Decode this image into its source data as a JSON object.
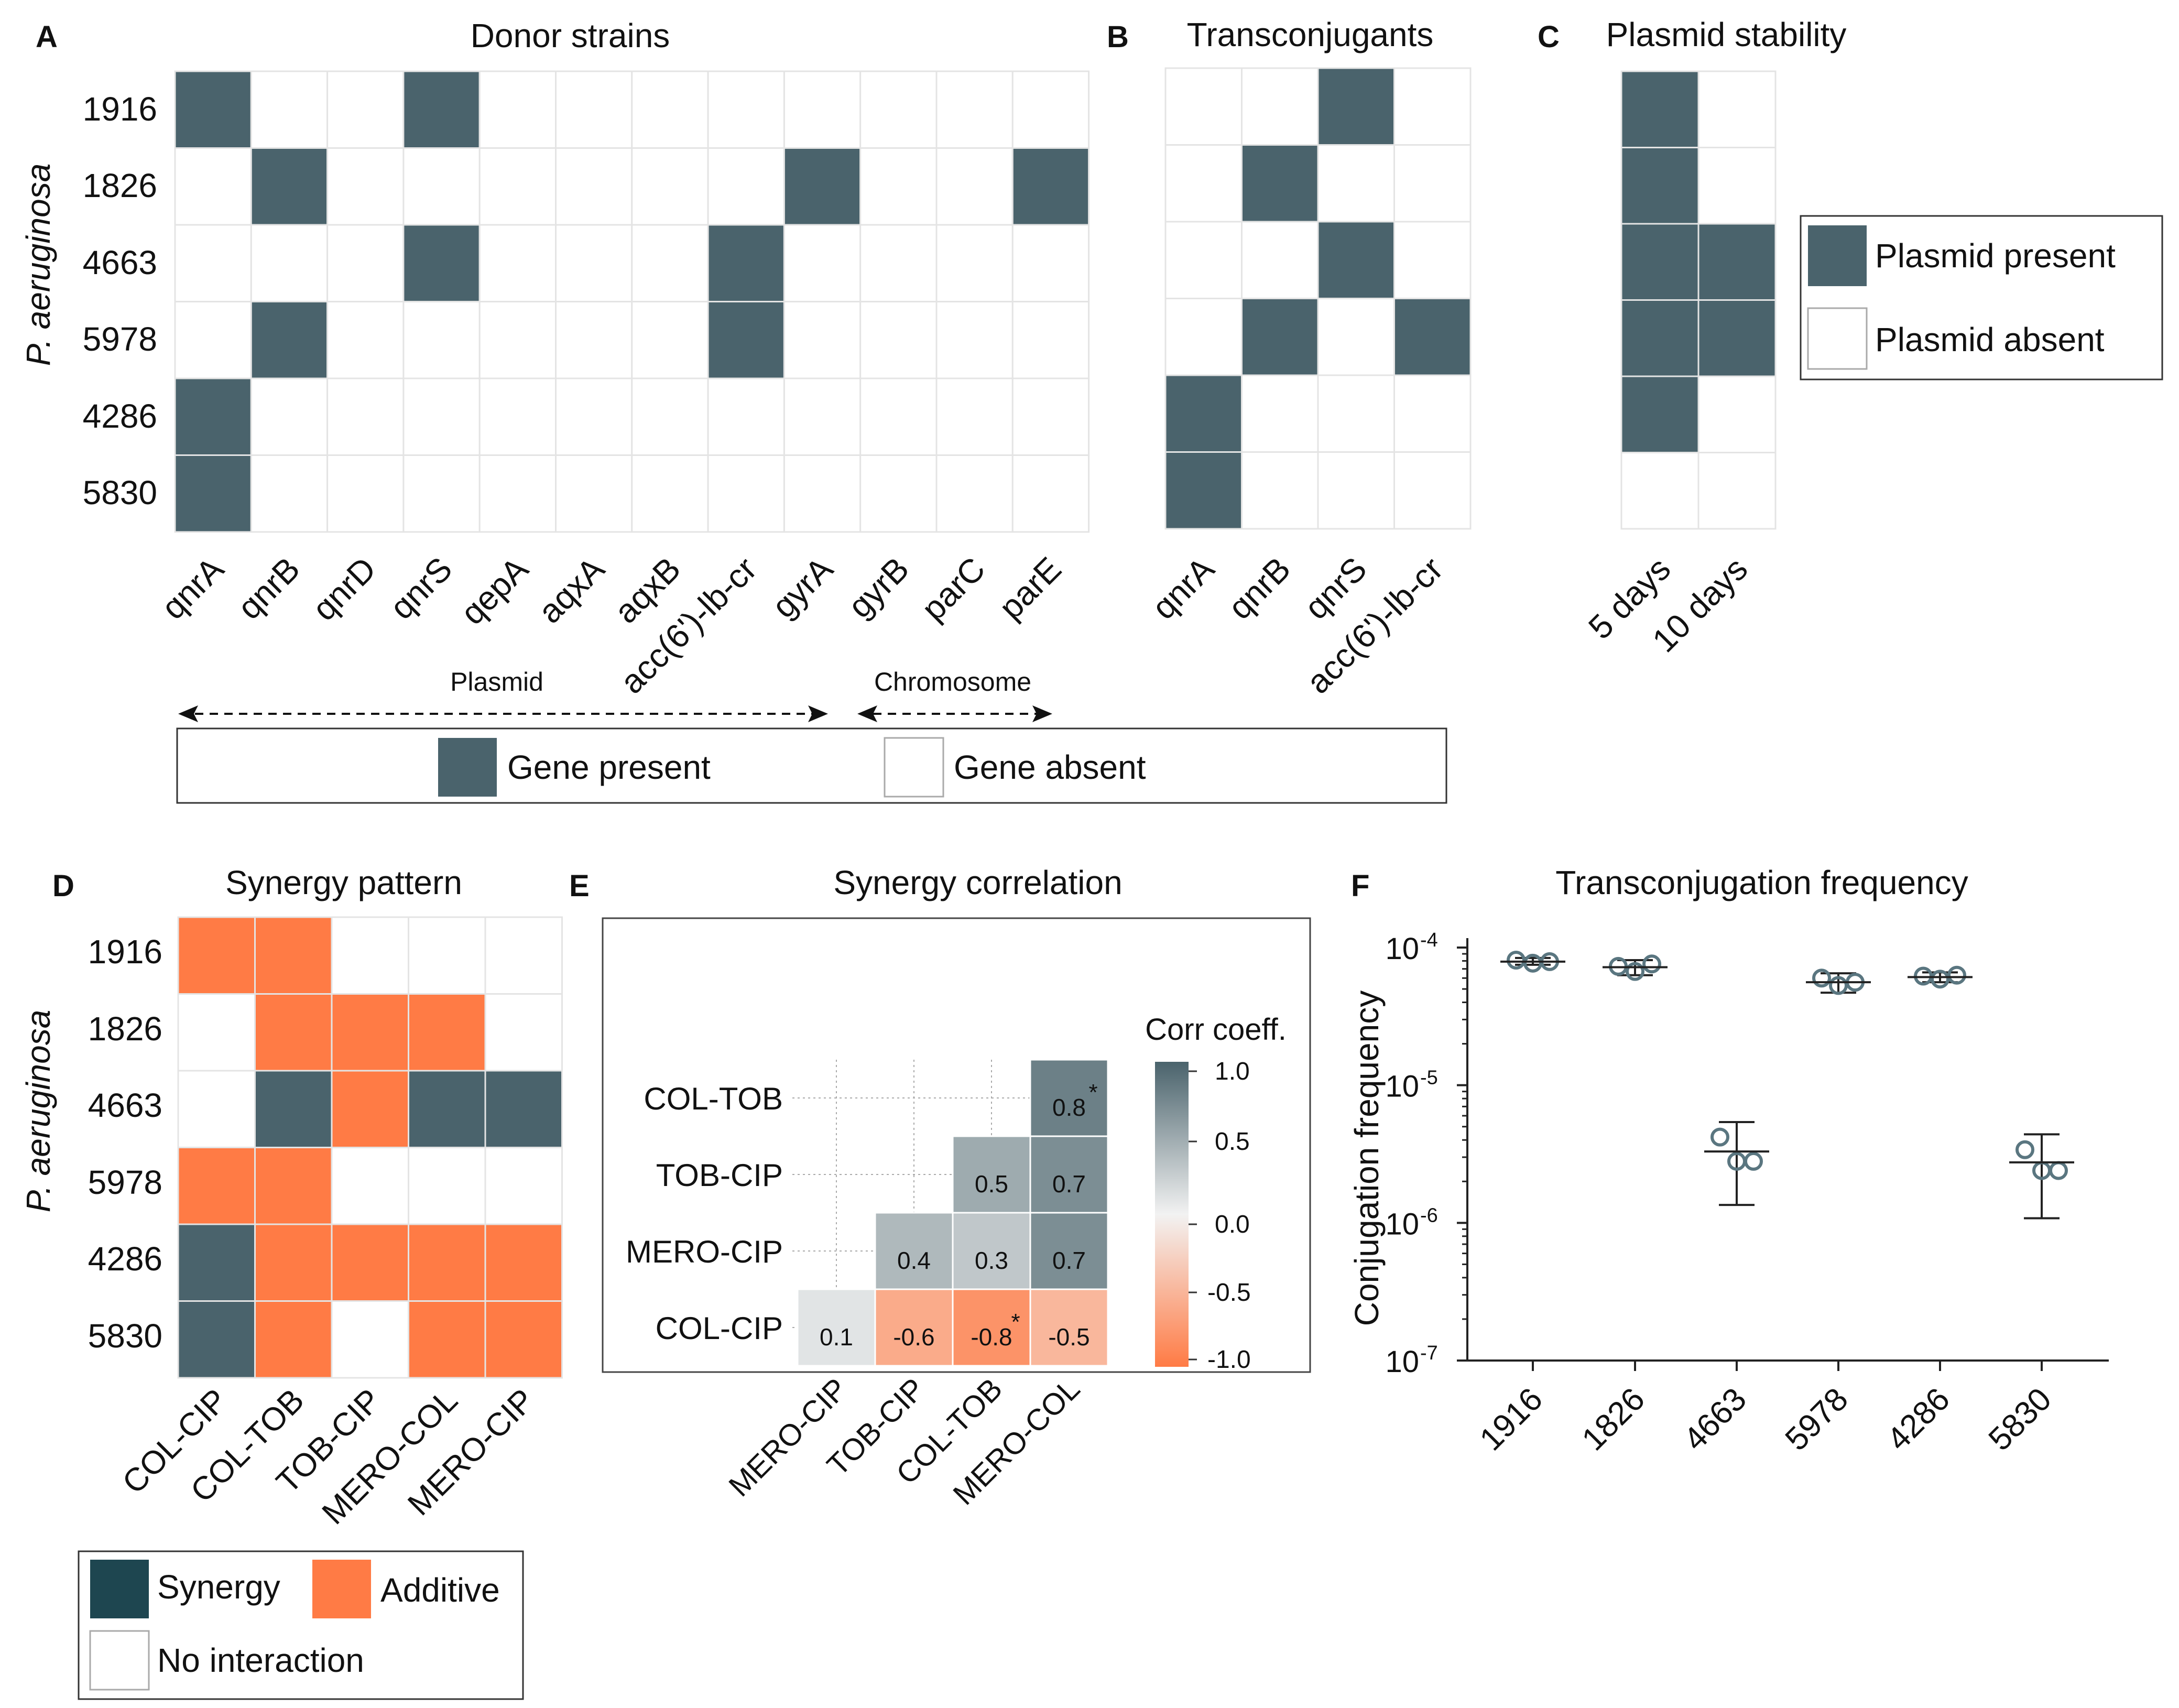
{
  "colors": {
    "present": "#4a636c",
    "absent": "#ffffff",
    "synergy": "#4a636c",
    "additive": "#ff7b45",
    "synergy_legend": "#1e4650",
    "corr_high": "#4a636c",
    "corr_mid": "#f2f2f2",
    "corr_low": "#ff7b45",
    "marker": "#5a7680"
  },
  "strains": [
    "1916",
    "1826",
    "4663",
    "5978",
    "4286",
    "5830"
  ],
  "y_axis_label": "P. aeruginosa",
  "chart_data": [
    {
      "panel": "A",
      "type": "heatmap",
      "title": "Donor strains",
      "rows": [
        "1916",
        "1826",
        "4663",
        "5978",
        "4286",
        "5830"
      ],
      "columns": [
        "qnrA",
        "qnrB",
        "qnrD",
        "qnrS",
        "qepA",
        "aqxA",
        "aqxB",
        "acc(6')-lb-cr",
        "gyrA",
        "gyrB",
        "parC",
        "parE"
      ],
      "matrix": [
        [
          1,
          0,
          0,
          1,
          0,
          0,
          0,
          0,
          0,
          0,
          0,
          0
        ],
        [
          0,
          1,
          0,
          0,
          0,
          0,
          0,
          0,
          1,
          0,
          0,
          1
        ],
        [
          0,
          0,
          0,
          1,
          0,
          0,
          0,
          1,
          0,
          0,
          0,
          0
        ],
        [
          0,
          1,
          0,
          0,
          0,
          0,
          0,
          1,
          0,
          0,
          0,
          0
        ],
        [
          1,
          0,
          0,
          0,
          0,
          0,
          0,
          0,
          0,
          0,
          0,
          0
        ],
        [
          1,
          0,
          0,
          0,
          0,
          0,
          0,
          0,
          0,
          0,
          0,
          0
        ]
      ],
      "groups": [
        {
          "label": "Plasmid",
          "columns": [
            "qnrA",
            "qnrB",
            "qnrD",
            "qnrS",
            "qepA",
            "aqxA",
            "aqxB",
            "acc(6')-lb-cr"
          ]
        },
        {
          "label": "Chromosome",
          "columns": [
            "gyrA",
            "gyrB",
            "parC",
            "parE"
          ]
        }
      ],
      "legend": [
        "Gene present",
        "Gene absent"
      ]
    },
    {
      "panel": "B",
      "type": "heatmap",
      "title": "Transconjugants",
      "rows": [
        "1916",
        "1826",
        "4663",
        "5978",
        "4286",
        "5830"
      ],
      "columns": [
        "qnrA",
        "qnrB",
        "qnrS",
        "acc(6')-lb-cr"
      ],
      "matrix": [
        [
          0,
          0,
          1,
          0
        ],
        [
          0,
          1,
          0,
          0
        ],
        [
          0,
          0,
          1,
          0
        ],
        [
          0,
          1,
          0,
          1
        ],
        [
          1,
          0,
          0,
          0
        ],
        [
          1,
          0,
          0,
          0
        ]
      ]
    },
    {
      "panel": "C",
      "type": "heatmap",
      "title": "Plasmid stability",
      "rows": [
        "1916",
        "1826",
        "4663",
        "5978",
        "4286",
        "5830"
      ],
      "columns": [
        "5 days",
        "10 days"
      ],
      "matrix": [
        [
          1,
          0
        ],
        [
          1,
          0
        ],
        [
          1,
          1
        ],
        [
          1,
          1
        ],
        [
          1,
          0
        ],
        [
          0,
          0
        ]
      ],
      "legend": [
        "Plasmid present",
        "Plasmid absent"
      ]
    },
    {
      "panel": "D",
      "type": "heatmap",
      "title": "Synergy pattern",
      "rows": [
        "1916",
        "1826",
        "4663",
        "5978",
        "4286",
        "5830"
      ],
      "columns": [
        "COL-CIP",
        "COL-TOB",
        "TOB-CIP",
        "MERO-COL",
        "MERO-CIP"
      ],
      "matrix": [
        [
          "A",
          "A",
          "N",
          "N",
          "N"
        ],
        [
          "N",
          "A",
          "A",
          "A",
          "N"
        ],
        [
          "N",
          "S",
          "A",
          "S",
          "S"
        ],
        [
          "A",
          "A",
          "N",
          "N",
          "N"
        ],
        [
          "S",
          "A",
          "A",
          "A",
          "A"
        ],
        [
          "S",
          "A",
          "N",
          "A",
          "A"
        ]
      ],
      "legend": {
        "S": "Synergy",
        "A": "Additive",
        "N": "No interaction"
      }
    },
    {
      "panel": "E",
      "type": "heatmap",
      "title": "Synergy correlation",
      "rows": [
        "COL-TOB",
        "TOB-CIP",
        "MERO-CIP",
        "COL-CIP"
      ],
      "columns": [
        "MERO-CIP",
        "TOB-CIP",
        "COL-TOB",
        "MERO-COL"
      ],
      "cells": [
        {
          "row": 0,
          "col": 3,
          "value": 0.8,
          "label": "0.8",
          "star": "*"
        },
        {
          "row": 1,
          "col": 2,
          "value": 0.5,
          "label": "0.5",
          "star": ""
        },
        {
          "row": 1,
          "col": 3,
          "value": 0.7,
          "label": "0.7",
          "star": ""
        },
        {
          "row": 2,
          "col": 1,
          "value": 0.4,
          "label": "0.4",
          "star": ""
        },
        {
          "row": 2,
          "col": 2,
          "value": 0.3,
          "label": "0.3",
          "star": ""
        },
        {
          "row": 2,
          "col": 3,
          "value": 0.7,
          "label": "0.7",
          "star": ""
        },
        {
          "row": 3,
          "col": 0,
          "value": 0.1,
          "label": "0.1",
          "star": ""
        },
        {
          "row": 3,
          "col": 1,
          "value": -0.6,
          "label": "-0.6",
          "star": ""
        },
        {
          "row": 3,
          "col": 2,
          "value": -0.8,
          "label": "-0.8",
          "star": "*"
        },
        {
          "row": 3,
          "col": 3,
          "value": -0.5,
          "label": "-0.5",
          "star": ""
        }
      ],
      "colorbar": {
        "title": "Corr coeff.",
        "ticks": [
          "1.0",
          "0.5",
          "0.0",
          "-0.5",
          "-1.0"
        ],
        "range": [
          -1,
          1
        ]
      }
    },
    {
      "panel": "F",
      "type": "scatter",
      "title": "Transconjugation frequency",
      "ylabel": "Conjugation frequency",
      "yscale": "log",
      "ylim": [
        1e-07,
        0.0001
      ],
      "yticks": [
        {
          "base": "10",
          "exp": "-4"
        },
        {
          "base": "10",
          "exp": "-5"
        },
        {
          "base": "10",
          "exp": "-6"
        },
        {
          "base": "10",
          "exp": "-7"
        }
      ],
      "categories": [
        "1916",
        "1826",
        "4663",
        "5978",
        "4286",
        "5830"
      ],
      "points": [
        [
          8.1e-05,
          7.7e-05,
          7.9e-05
        ],
        [
          7.3e-05,
          6.7e-05,
          7.6e-05
        ],
        [
          4.2e-06,
          2.8e-06,
          2.8e-06
        ],
        [
          6e-05,
          5.3e-05,
          5.6e-05
        ],
        [
          6.2e-05,
          5.9e-05,
          6.3e-05
        ],
        [
          3.4e-06,
          2.4e-06,
          2.4e-06
        ]
      ],
      "mean": [
        7.9e-05,
        7.2e-05,
        3.3e-06,
        5.6e-05,
        6.1e-05,
        2.75e-06
      ],
      "sd_high": [
        8.4e-05,
        8.1e-05,
        5.4e-06,
        6.5e-05,
        6.6e-05,
        4.4e-06
      ],
      "sd_low": [
        7.5e-05,
        6.3e-05,
        1.35e-06,
        4.7e-05,
        5.6e-05,
        1.08e-06
      ]
    }
  ],
  "panel_labels": [
    "A",
    "B",
    "C",
    "D",
    "E",
    "F"
  ]
}
